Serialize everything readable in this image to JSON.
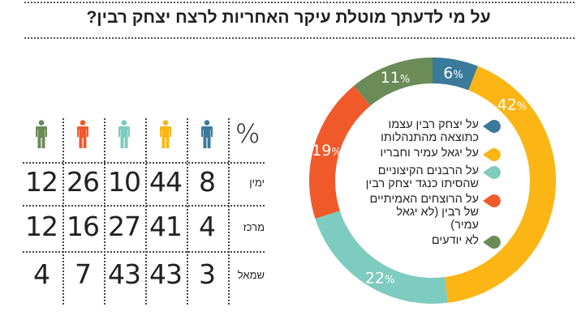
{
  "title": "על מי לדעתך מוטלת עיקר האחריות לרצח יצחק רבין?",
  "chart_data": [
    {
      "type": "pie",
      "variant": "donut",
      "title": "על מי לדעתך מוטלת עיקר האחריות לרצח יצחק רבין?",
      "start": "top",
      "direction": "clockwise",
      "slices": [
        {
          "key": "rabin",
          "label": "על יצחק רבין עצמו\nכתוצאה מהתנהלותו",
          "value": 6,
          "color": "#3a7a9b"
        },
        {
          "key": "amir",
          "label": "על יגאל עמיר וחבריו",
          "value": 42,
          "color": "#fbb615"
        },
        {
          "key": "rabbis",
          "label": "על הרבנים הקיצוניים\nשהסיתו כנגד יצחק רבין",
          "value": 22,
          "color": "#7ecbbf"
        },
        {
          "key": "real",
          "label": "על הרוצחים האמיתיים\nשל רבין (לא יגאל עמיר)",
          "value": 19,
          "color": "#f05a2b"
        },
        {
          "key": "unknown",
          "label": "לא יודעים",
          "value": 11,
          "color": "#6b8b57"
        }
      ],
      "value_suffix": "%",
      "legend": "center"
    },
    {
      "type": "table",
      "header_symbol": "%",
      "columns": [
        {
          "key": "rabin",
          "icon": "person-icon",
          "color": "#3a7a9b"
        },
        {
          "key": "amir",
          "icon": "person-icon",
          "color": "#fbb615"
        },
        {
          "key": "rabbis",
          "icon": "person-icon",
          "color": "#7ecbbf"
        },
        {
          "key": "real",
          "icon": "person-icon",
          "color": "#f05a2b"
        },
        {
          "key": "unknown",
          "icon": "person-icon",
          "color": "#6b8b57"
        }
      ],
      "rows": [
        {
          "label": "ימין",
          "values": [
            8,
            44,
            10,
            26,
            12
          ]
        },
        {
          "label": "מרכז",
          "values": [
            4,
            41,
            27,
            16,
            12
          ]
        },
        {
          "label": "שמאל",
          "values": [
            3,
            43,
            43,
            7,
            4
          ]
        }
      ]
    }
  ]
}
